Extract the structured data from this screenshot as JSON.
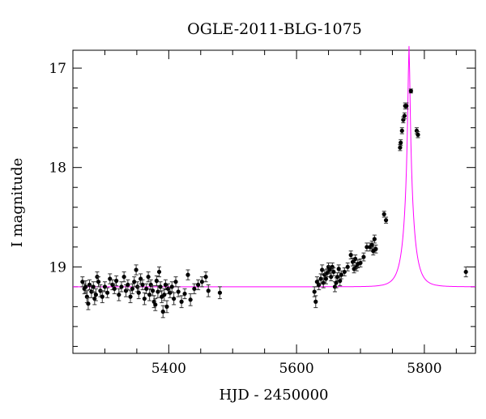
{
  "chart_data": {
    "type": "scatter",
    "title": "OGLE-2011-BLG-1075",
    "xlabel": "HJD - 2450000",
    "ylabel": "I magnitude",
    "xlim": [
      5250,
      5880
    ],
    "ylim": [
      19.87,
      16.82
    ],
    "y_inverted": true,
    "grid": false,
    "x_major_ticks": [
      5400,
      5600,
      5800
    ],
    "x_tick_labels": [
      "5400",
      "5600",
      "5800"
    ],
    "y_major_ticks": [
      17,
      18,
      19
    ],
    "y_tick_labels": [
      "17",
      "18",
      "19"
    ],
    "colors": {
      "data": "#000000",
      "model": "#ff00ff"
    },
    "model": {
      "t0": 5776,
      "tE": 15,
      "u0": 0.0825,
      "i_base": 19.2,
      "blend_fraction": 0.745
    },
    "series": [
      {
        "type": "scatter_errorbar",
        "points": [
          [
            5265,
            19.15,
            0.05
          ],
          [
            5268,
            19.22,
            0.05
          ],
          [
            5270,
            19.2,
            0.06
          ],
          [
            5272,
            19.3,
            0.06
          ],
          [
            5274,
            19.37,
            0.06
          ],
          [
            5276,
            19.18,
            0.05
          ],
          [
            5279,
            19.25,
            0.06
          ],
          [
            5282,
            19.2,
            0.05
          ],
          [
            5284,
            19.32,
            0.06
          ],
          [
            5286,
            19.28,
            0.06
          ],
          [
            5288,
            19.1,
            0.05
          ],
          [
            5290,
            19.15,
            0.05
          ],
          [
            5293,
            19.24,
            0.06
          ],
          [
            5296,
            19.3,
            0.06
          ],
          [
            5300,
            19.2,
            0.05
          ],
          [
            5304,
            19.26,
            0.05
          ],
          [
            5308,
            19.12,
            0.05
          ],
          [
            5312,
            19.18,
            0.05
          ],
          [
            5315,
            19.22,
            0.05
          ],
          [
            5318,
            19.14,
            0.05
          ],
          [
            5322,
            19.28,
            0.06
          ],
          [
            5326,
            19.2,
            0.05
          ],
          [
            5330,
            19.1,
            0.05
          ],
          [
            5333,
            19.24,
            0.06
          ],
          [
            5336,
            19.18,
            0.05
          ],
          [
            5340,
            19.3,
            0.06
          ],
          [
            5343,
            19.22,
            0.05
          ],
          [
            5346,
            19.15,
            0.05
          ],
          [
            5349,
            19.03,
            0.05
          ],
          [
            5351,
            19.2,
            0.05
          ],
          [
            5353,
            19.26,
            0.06
          ],
          [
            5356,
            19.12,
            0.05
          ],
          [
            5359,
            19.18,
            0.05
          ],
          [
            5362,
            19.32,
            0.06
          ],
          [
            5365,
            19.22,
            0.05
          ],
          [
            5368,
            19.1,
            0.05
          ],
          [
            5370,
            19.28,
            0.06
          ],
          [
            5372,
            19.18,
            0.05
          ],
          [
            5375,
            19.24,
            0.05
          ],
          [
            5377,
            19.35,
            0.06
          ],
          [
            5379,
            19.38,
            0.06
          ],
          [
            5381,
            19.14,
            0.05
          ],
          [
            5383,
            19.25,
            0.06
          ],
          [
            5385,
            19.05,
            0.05
          ],
          [
            5387,
            19.2,
            0.05
          ],
          [
            5389,
            19.3,
            0.06
          ],
          [
            5391,
            19.45,
            0.06
          ],
          [
            5393,
            19.28,
            0.06
          ],
          [
            5395,
            19.18,
            0.05
          ],
          [
            5397,
            19.4,
            0.06
          ],
          [
            5399,
            19.22,
            0.05
          ],
          [
            5402,
            19.26,
            0.05
          ],
          [
            5405,
            19.2,
            0.05
          ],
          [
            5408,
            19.32,
            0.06
          ],
          [
            5411,
            19.15,
            0.05
          ],
          [
            5415,
            19.25,
            0.05
          ],
          [
            5420,
            19.35,
            0.06
          ],
          [
            5425,
            19.27,
            0.05
          ],
          [
            5430,
            19.08,
            0.05
          ],
          [
            5434,
            19.33,
            0.06
          ],
          [
            5440,
            19.22,
            0.05
          ],
          [
            5446,
            19.18,
            0.05
          ],
          [
            5452,
            19.15,
            0.05
          ],
          [
            5458,
            19.1,
            0.05
          ],
          [
            5462,
            19.24,
            0.06
          ],
          [
            5480,
            19.26,
            0.06
          ],
          [
            5628,
            19.25,
            0.05
          ],
          [
            5630,
            19.35,
            0.06
          ],
          [
            5632,
            19.15,
            0.05
          ],
          [
            5635,
            19.18,
            0.05
          ],
          [
            5638,
            19.12,
            0.05
          ],
          [
            5640,
            19.03,
            0.05
          ],
          [
            5642,
            19.16,
            0.05
          ],
          [
            5644,
            19.08,
            0.05
          ],
          [
            5646,
            19.12,
            0.05
          ],
          [
            5648,
            19.06,
            0.04
          ],
          [
            5650,
            19.0,
            0.04
          ],
          [
            5652,
            19.03,
            0.04
          ],
          [
            5654,
            19.1,
            0.04
          ],
          [
            5656,
            19.0,
            0.04
          ],
          [
            5658,
            19.05,
            0.04
          ],
          [
            5660,
            19.2,
            0.05
          ],
          [
            5662,
            19.16,
            0.05
          ],
          [
            5664,
            19.1,
            0.04
          ],
          [
            5666,
            19.02,
            0.04
          ],
          [
            5668,
            19.14,
            0.05
          ],
          [
            5670,
            19.08,
            0.04
          ],
          [
            5675,
            19.05,
            0.04
          ],
          [
            5680,
            19.0,
            0.04
          ],
          [
            5685,
            18.88,
            0.04
          ],
          [
            5688,
            18.95,
            0.04
          ],
          [
            5690,
            19.02,
            0.04
          ],
          [
            5692,
            18.92,
            0.04
          ],
          [
            5694,
            19.0,
            0.04
          ],
          [
            5696,
            18.97,
            0.04
          ],
          [
            5700,
            18.96,
            0.04
          ],
          [
            5705,
            18.9,
            0.04
          ],
          [
            5710,
            18.8,
            0.04
          ],
          [
            5715,
            18.8,
            0.04
          ],
          [
            5718,
            18.78,
            0.04
          ],
          [
            5720,
            18.84,
            0.04
          ],
          [
            5722,
            18.72,
            0.04
          ],
          [
            5724,
            18.82,
            0.04
          ],
          [
            5737,
            18.47,
            0.03
          ],
          [
            5740,
            18.53,
            0.03
          ],
          [
            5762,
            17.8,
            0.03
          ],
          [
            5763,
            17.75,
            0.03
          ],
          [
            5765,
            17.63,
            0.03
          ],
          [
            5767,
            17.52,
            0.03
          ],
          [
            5769,
            17.48,
            0.03
          ],
          [
            5770,
            17.38,
            0.03
          ],
          [
            5772,
            17.38,
            0.03
          ],
          [
            5779,
            17.23,
            0.02
          ],
          [
            5788,
            17.63,
            0.03
          ],
          [
            5790,
            17.67,
            0.03
          ],
          [
            5865,
            19.05,
            0.05
          ]
        ]
      }
    ]
  }
}
